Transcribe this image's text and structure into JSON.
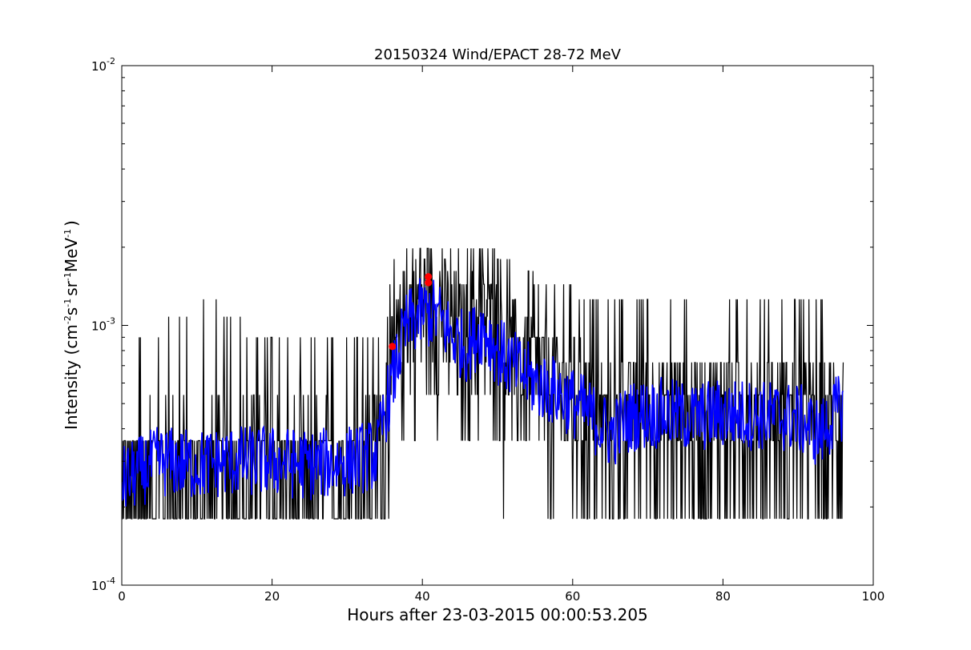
{
  "chart_data": {
    "type": "line",
    "title": "20150324 Wind/EPACT 28-72 MeV",
    "xlabel": "Hours after 23-03-2015 00:00:53.205",
    "ylabel": {
      "text_start": "Intensity (cm",
      "exp1": "-2",
      "t2": "s",
      "exp2": "-1",
      "t3": "sr",
      "exp3": "-1",
      "t4": "MeV",
      "exp4": "-1",
      "text_end": ")"
    },
    "xlim": [
      0,
      100
    ],
    "ylim": [
      0.0001,
      0.01
    ],
    "yscale": "log",
    "x_ticks": [
      {
        "value": 0,
        "label": "0"
      },
      {
        "value": 20,
        "label": "20"
      },
      {
        "value": 40,
        "label": "40"
      },
      {
        "value": 60,
        "label": "60"
      },
      {
        "value": 80,
        "label": "80"
      },
      {
        "value": 100,
        "label": "100"
      }
    ],
    "y_ticks": [
      {
        "value": 0.0001,
        "base": "10",
        "exp": "-4"
      },
      {
        "value": 0.001,
        "base": "10",
        "exp": "-3"
      },
      {
        "value": 0.01,
        "base": "10",
        "exp": "-2"
      }
    ],
    "grid": false,
    "series": [
      {
        "kind": "raw",
        "color": "#000000",
        "x_start": 0,
        "x_end": 96,
        "quantized_levels": [
          0.00018,
          0.00036,
          0.00054,
          0.00072,
          0.0009,
          0.00108,
          0.00126,
          0.00144,
          0.00162,
          0.0018,
          0.00198
        ],
        "envelope": [
          {
            "x": 0,
            "low": 0.00018,
            "high": 0.0009
          },
          {
            "x": 12,
            "low": 0.00018,
            "high": 0.0013
          },
          {
            "x": 20,
            "low": 0.00018,
            "high": 0.0009
          },
          {
            "x": 30,
            "low": 0.00018,
            "high": 0.0009
          },
          {
            "x": 35,
            "low": 0.00018,
            "high": 0.0009
          },
          {
            "x": 36,
            "low": 0.00018,
            "high": 0.0018
          },
          {
            "x": 40,
            "low": 0.00018,
            "high": 0.0023
          },
          {
            "x": 47,
            "low": 0.00018,
            "high": 0.0022
          },
          {
            "x": 55,
            "low": 0.00018,
            "high": 0.0016
          },
          {
            "x": 65,
            "low": 0.00018,
            "high": 0.0013
          },
          {
            "x": 75,
            "low": 0.00018,
            "high": 0.0014
          },
          {
            "x": 85,
            "low": 0.00018,
            "high": 0.0013
          },
          {
            "x": 96,
            "low": 0.00018,
            "high": 0.0013
          }
        ]
      },
      {
        "kind": "smoothed",
        "color": "#0000ff",
        "points": [
          {
            "x": 0,
            "y": 0.00025
          },
          {
            "x": 5,
            "y": 0.0003
          },
          {
            "x": 10,
            "y": 0.00029
          },
          {
            "x": 15,
            "y": 0.0003
          },
          {
            "x": 20,
            "y": 0.0003
          },
          {
            "x": 25,
            "y": 0.00029
          },
          {
            "x": 30,
            "y": 0.0003
          },
          {
            "x": 34,
            "y": 0.00032
          },
          {
            "x": 36,
            "y": 0.0006
          },
          {
            "x": 38,
            "y": 0.001
          },
          {
            "x": 40,
            "y": 0.00112
          },
          {
            "x": 42,
            "y": 0.0011
          },
          {
            "x": 44,
            "y": 0.0009
          },
          {
            "x": 46,
            "y": 0.00082
          },
          {
            "x": 48,
            "y": 0.00098
          },
          {
            "x": 50,
            "y": 0.0008
          },
          {
            "x": 52,
            "y": 0.0007
          },
          {
            "x": 55,
            "y": 0.0006
          },
          {
            "x": 58,
            "y": 0.00055
          },
          {
            "x": 62,
            "y": 0.00046
          },
          {
            "x": 65,
            "y": 0.00038
          },
          {
            "x": 68,
            "y": 0.00045
          },
          {
            "x": 72,
            "y": 0.00046
          },
          {
            "x": 76,
            "y": 0.00044
          },
          {
            "x": 80,
            "y": 0.00046
          },
          {
            "x": 85,
            "y": 0.00045
          },
          {
            "x": 90,
            "y": 0.00044
          },
          {
            "x": 93,
            "y": 0.00038
          },
          {
            "x": 96,
            "y": 0.0005
          }
        ]
      }
    ],
    "markers": [
      {
        "x": 36.0,
        "y": 0.00083,
        "color": "#ff0000"
      },
      {
        "x": 40.8,
        "y": 0.00146,
        "color": "#ff0000"
      },
      {
        "x": 40.8,
        "y": 0.00154,
        "color": "#ff0000"
      }
    ]
  }
}
